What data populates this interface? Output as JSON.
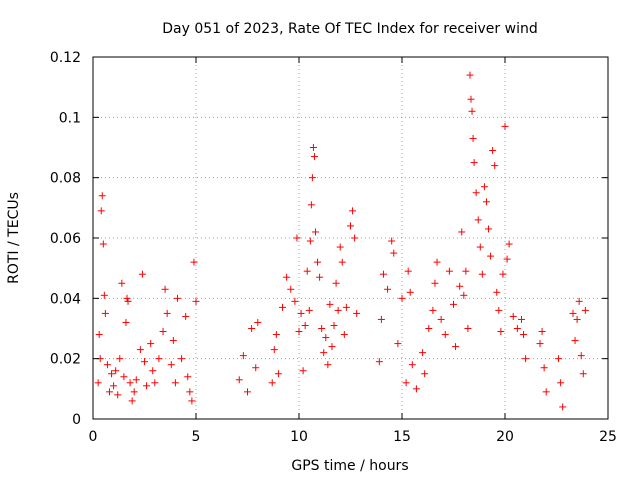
{
  "chart_data": {
    "type": "scatter",
    "title": "Day 051 of 2023, Rate Of TEC Index for receiver wind",
    "xlabel": "GPS time / hours",
    "ylabel": "ROTI / TECUs",
    "xlim": [
      0,
      25
    ],
    "ylim": [
      0,
      0.12
    ],
    "x_ticks": [
      0,
      5,
      10,
      15,
      20,
      25
    ],
    "x_tick_labels": [
      "0",
      "5",
      "10",
      "15",
      "20",
      "25"
    ],
    "y_ticks": [
      0,
      0.02,
      0.04,
      0.06,
      0.08,
      0.1,
      0.12
    ],
    "y_tick_labels": [
      "0",
      "0.02",
      "0.04",
      "0.06",
      "0.08",
      "0.1",
      "0.12"
    ],
    "grid": true,
    "marker": "plus",
    "color": "#ff0000",
    "series": [
      {
        "points": [
          [
            0.25,
            0.012
          ],
          [
            0.3,
            0.028
          ],
          [
            0.35,
            0.02
          ],
          [
            0.4,
            0.069
          ],
          [
            0.45,
            0.074
          ],
          [
            0.5,
            0.058
          ],
          [
            0.55,
            0.041
          ],
          [
            0.6,
            0.035
          ],
          [
            0.7,
            0.018
          ],
          [
            0.8,
            0.009
          ],
          [
            0.9,
            0.015
          ],
          [
            1.0,
            0.011
          ],
          [
            1.1,
            0.016
          ],
          [
            1.2,
            0.008
          ],
          [
            1.3,
            0.02
          ],
          [
            1.4,
            0.045
          ],
          [
            1.5,
            0.014
          ],
          [
            1.6,
            0.032
          ],
          [
            1.65,
            0.04
          ],
          [
            1.7,
            0.039
          ],
          [
            1.8,
            0.012
          ],
          [
            1.9,
            0.006
          ],
          [
            2.0,
            0.009
          ],
          [
            2.1,
            0.013
          ],
          [
            2.3,
            0.023
          ],
          [
            2.4,
            0.048
          ],
          [
            2.5,
            0.019
          ],
          [
            2.6,
            0.011
          ],
          [
            2.8,
            0.025
          ],
          [
            2.9,
            0.016
          ],
          [
            3.0,
            0.012
          ],
          [
            3.2,
            0.02
          ],
          [
            3.4,
            0.029
          ],
          [
            3.5,
            0.043
          ],
          [
            3.6,
            0.035
          ],
          [
            3.8,
            0.018
          ],
          [
            3.9,
            0.026
          ],
          [
            4.0,
            0.012
          ],
          [
            4.1,
            0.04
          ],
          [
            4.3,
            0.02
          ],
          [
            4.5,
            0.034
          ],
          [
            4.6,
            0.014
          ],
          [
            4.7,
            0.009
          ],
          [
            4.8,
            0.006
          ],
          [
            4.9,
            0.052
          ],
          [
            5.0,
            0.039
          ],
          [
            7.1,
            0.013
          ],
          [
            7.3,
            0.021
          ],
          [
            7.5,
            0.009
          ],
          [
            7.7,
            0.03
          ],
          [
            7.9,
            0.017
          ],
          [
            8.0,
            0.032
          ],
          [
            8.7,
            0.012
          ],
          [
            8.8,
            0.023
          ],
          [
            8.9,
            0.028
          ],
          [
            9.0,
            0.015
          ],
          [
            9.2,
            0.037
          ],
          [
            9.4,
            0.047
          ],
          [
            9.6,
            0.043
          ],
          [
            9.8,
            0.039
          ],
          [
            9.9,
            0.06
          ],
          [
            10.0,
            0.029
          ],
          [
            10.1,
            0.035
          ],
          [
            10.2,
            0.016
          ],
          [
            10.3,
            0.031
          ],
          [
            10.4,
            0.049
          ],
          [
            10.5,
            0.036
          ],
          [
            10.55,
            0.059
          ],
          [
            10.6,
            0.071
          ],
          [
            10.65,
            0.08
          ],
          [
            10.7,
            0.09
          ],
          [
            10.75,
            0.087
          ],
          [
            10.8,
            0.062
          ],
          [
            10.9,
            0.052
          ],
          [
            11.0,
            0.047
          ],
          [
            11.1,
            0.03
          ],
          [
            11.2,
            0.022
          ],
          [
            11.3,
            0.027
          ],
          [
            11.4,
            0.018
          ],
          [
            11.5,
            0.038
          ],
          [
            11.6,
            0.024
          ],
          [
            11.7,
            0.031
          ],
          [
            11.8,
            0.045
          ],
          [
            11.9,
            0.036
          ],
          [
            12.0,
            0.057
          ],
          [
            12.1,
            0.052
          ],
          [
            12.2,
            0.028
          ],
          [
            12.3,
            0.037
          ],
          [
            12.5,
            0.064
          ],
          [
            12.6,
            0.069
          ],
          [
            12.7,
            0.06
          ],
          [
            12.8,
            0.035
          ],
          [
            13.9,
            0.019
          ],
          [
            14.0,
            0.033
          ],
          [
            14.1,
            0.048
          ],
          [
            14.3,
            0.043
          ],
          [
            14.5,
            0.059
          ],
          [
            14.6,
            0.055
          ],
          [
            14.8,
            0.025
          ],
          [
            15.0,
            0.04
          ],
          [
            15.2,
            0.012
          ],
          [
            15.3,
            0.049
          ],
          [
            15.4,
            0.042
          ],
          [
            15.5,
            0.018
          ],
          [
            15.7,
            0.01
          ],
          [
            16.0,
            0.022
          ],
          [
            16.1,
            0.015
          ],
          [
            16.3,
            0.03
          ],
          [
            16.5,
            0.036
          ],
          [
            16.6,
            0.045
          ],
          [
            16.7,
            0.052
          ],
          [
            16.9,
            0.033
          ],
          [
            17.1,
            0.028
          ],
          [
            17.3,
            0.049
          ],
          [
            17.5,
            0.038
          ],
          [
            17.6,
            0.024
          ],
          [
            17.8,
            0.044
          ],
          [
            17.9,
            0.062
          ],
          [
            18.0,
            0.041
          ],
          [
            18.1,
            0.049
          ],
          [
            18.2,
            0.03
          ],
          [
            18.3,
            0.114
          ],
          [
            18.35,
            0.106
          ],
          [
            18.4,
            0.102
          ],
          [
            18.45,
            0.093
          ],
          [
            18.5,
            0.085
          ],
          [
            18.6,
            0.075
          ],
          [
            18.7,
            0.066
          ],
          [
            18.8,
            0.057
          ],
          [
            18.9,
            0.048
          ],
          [
            19.0,
            0.077
          ],
          [
            19.1,
            0.072
          ],
          [
            19.2,
            0.063
          ],
          [
            19.3,
            0.054
          ],
          [
            19.4,
            0.089
          ],
          [
            19.5,
            0.084
          ],
          [
            19.6,
            0.042
          ],
          [
            19.7,
            0.036
          ],
          [
            19.8,
            0.029
          ],
          [
            19.9,
            0.048
          ],
          [
            20.0,
            0.097
          ],
          [
            20.1,
            0.053
          ],
          [
            20.2,
            0.058
          ],
          [
            20.4,
            0.034
          ],
          [
            20.6,
            0.03
          ],
          [
            20.8,
            0.033
          ],
          [
            20.9,
            0.028
          ],
          [
            21.0,
            0.02
          ],
          [
            21.7,
            0.025
          ],
          [
            21.8,
            0.029
          ],
          [
            21.9,
            0.017
          ],
          [
            22.0,
            0.009
          ],
          [
            22.6,
            0.02
          ],
          [
            22.7,
            0.012
          ],
          [
            22.8,
            0.004
          ],
          [
            23.3,
            0.035
          ],
          [
            23.4,
            0.026
          ],
          [
            23.5,
            0.033
          ],
          [
            23.6,
            0.039
          ],
          [
            23.7,
            0.021
          ],
          [
            23.8,
            0.015
          ],
          [
            23.9,
            0.036
          ]
        ]
      }
    ]
  }
}
